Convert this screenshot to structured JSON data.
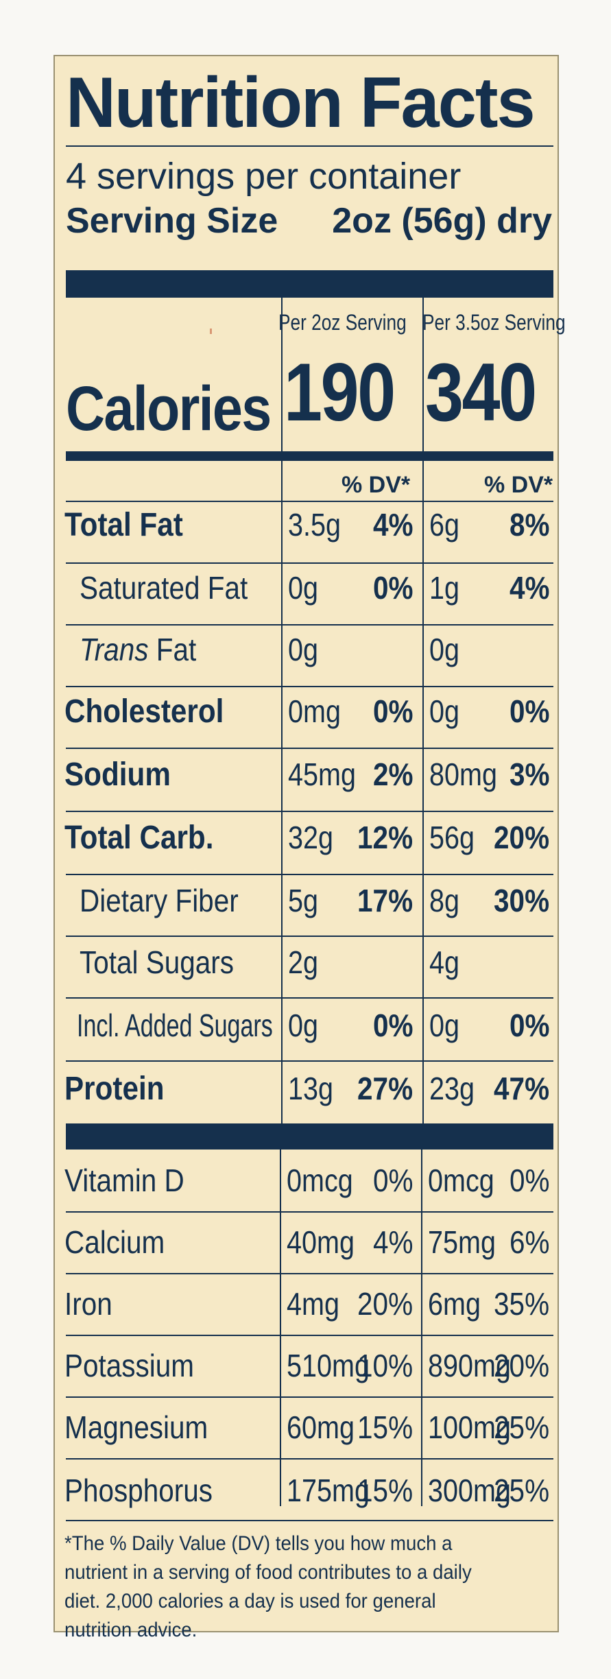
{
  "title": "Nutrition Facts",
  "servings_per_container": "4 servings per container",
  "serving_size_label": "Serving Size",
  "serving_size_value": "2oz (56g) dry",
  "columns": {
    "col1_header": "Per 2oz Serving",
    "col2_header": "Per 3.5oz Serving",
    "dv_header": "% DV*"
  },
  "calories": {
    "label": "Calories",
    "col1": "190",
    "col2": "340"
  },
  "nutrients": [
    {
      "name": "Total Fat",
      "bold": true,
      "indent": false,
      "a1": "3.5g",
      "p1": "4%",
      "a2": "6g",
      "p2": "8%"
    },
    {
      "name": "Saturated Fat",
      "bold": false,
      "indent": true,
      "a1": "0g",
      "p1": "0%",
      "a2": "1g",
      "p2": "4%"
    },
    {
      "name_italic": "Trans",
      "name": " Fat",
      "bold": false,
      "indent": true,
      "a1": "0g",
      "p1": "",
      "a2": "0g",
      "p2": ""
    },
    {
      "name": "Cholesterol",
      "bold": true,
      "indent": false,
      "a1": "0mg",
      "p1": "0%",
      "a2": "0g",
      "p2": "0%"
    },
    {
      "name": "Sodium",
      "bold": true,
      "indent": false,
      "a1": "45mg",
      "p1": "2%",
      "a2": "80mg",
      "p2": "3%"
    },
    {
      "name": "Total Carb.",
      "bold": true,
      "indent": false,
      "a1": "32g",
      "p1": "12%",
      "a2": "56g",
      "p2": "20%"
    },
    {
      "name": "Dietary Fiber",
      "bold": false,
      "indent": true,
      "a1": "5g",
      "p1": "17%",
      "a2": "8g",
      "p2": "30%"
    },
    {
      "name": "Total Sugars",
      "bold": false,
      "indent": true,
      "a1": "2g",
      "p1": "",
      "a2": "4g",
      "p2": ""
    },
    {
      "name": "Incl. Added Sugars",
      "bold": false,
      "indent": true,
      "a1": "0g",
      "p1": "0%",
      "a2": "0g",
      "p2": "0%"
    },
    {
      "name": "Protein",
      "bold": true,
      "indent": false,
      "a1": "13g",
      "p1": "27%",
      "a2": "23g",
      "p2": "47%"
    }
  ],
  "vitamins": [
    {
      "name": "Vitamin D",
      "a1": "0mcg",
      "p1": "0%",
      "a2": "0mcg",
      "p2": "0%"
    },
    {
      "name": "Calcium",
      "a1": "40mg",
      "p1": "4%",
      "a2": "75mg",
      "p2": "6%"
    },
    {
      "name": "Iron",
      "a1": "4mg",
      "p1": "20%",
      "a2": "6mg",
      "p2": "35%"
    },
    {
      "name": "Potassium",
      "a1": "510mg",
      "p1": "10%",
      "a2": "890mg",
      "p2": "20%"
    },
    {
      "name": "Magnesium",
      "a1": "60mg",
      "p1": "15%",
      "a2": "100mg",
      "p2": "25%"
    },
    {
      "name": "Phosphorus",
      "a1": "175mg",
      "p1": "15%",
      "a2": "300mg",
      "p2": "25%"
    }
  ],
  "footnote": "*The % Daily Value (DV) tells you how much a nutrient in a serving of food contributes to a daily diet. 2,000 calories a day is used for general nutrition advice.",
  "colors": {
    "ink": "#15304d",
    "background": "#f6e9c6"
  }
}
